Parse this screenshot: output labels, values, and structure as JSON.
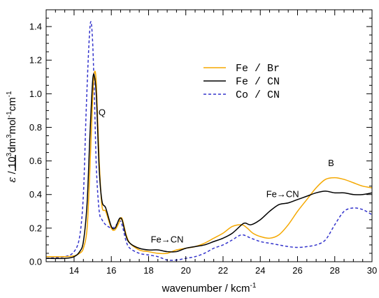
{
  "chart_data": {
    "type": "line",
    "xlabel": "wavenumber / kcm",
    "xlabel_sup": "-1",
    "ylabel": {
      "epsilon": "ε",
      "part1": " / 10",
      "sup1": "3",
      "part2": "dm",
      "sup2": "3",
      "part3": "mol",
      "sup3": "-1",
      "part4": "cm",
      "sup4": "-1"
    },
    "xlim": [
      12.5,
      30
    ],
    "ylim": [
      0,
      1.5
    ],
    "x_ticks": [
      14,
      16,
      18,
      20,
      22,
      24,
      26,
      28,
      30
    ],
    "y_ticks": [
      0.0,
      0.2,
      0.4,
      0.6,
      0.8,
      1.0,
      1.2,
      1.4
    ],
    "legend_position": "top-right",
    "series": [
      {
        "name": "Fe / Br",
        "color": "#f5a800",
        "dash": "solid",
        "x": [
          12.5,
          13.5,
          14.0,
          14.3,
          14.5,
          14.7,
          14.85,
          15.0,
          15.1,
          15.2,
          15.35,
          15.5,
          15.7,
          16.0,
          16.2,
          16.4,
          16.5,
          16.6,
          16.8,
          17.0,
          17.5,
          18.0,
          18.5,
          19.0,
          19.5,
          20.0,
          20.5,
          21.0,
          21.5,
          22.0,
          22.5,
          23.0,
          23.3,
          23.6,
          24.0,
          24.5,
          25.0,
          25.5,
          26.0,
          26.5,
          27.0,
          27.5,
          28.0,
          28.5,
          29.0,
          29.5,
          30.0
        ],
        "y": [
          0.03,
          0.03,
          0.035,
          0.05,
          0.08,
          0.2,
          0.55,
          0.98,
          1.13,
          1.05,
          0.6,
          0.33,
          0.3,
          0.2,
          0.19,
          0.23,
          0.26,
          0.25,
          0.16,
          0.11,
          0.07,
          0.06,
          0.05,
          0.05,
          0.07,
          0.08,
          0.09,
          0.11,
          0.14,
          0.17,
          0.21,
          0.22,
          0.2,
          0.17,
          0.15,
          0.14,
          0.16,
          0.22,
          0.3,
          0.37,
          0.44,
          0.49,
          0.5,
          0.49,
          0.47,
          0.45,
          0.44
        ]
      },
      {
        "name": "Fe / CN",
        "color": "#000000",
        "dash": "solid",
        "x": [
          12.5,
          13.5,
          14.0,
          14.3,
          14.5,
          14.7,
          14.85,
          15.0,
          15.1,
          15.2,
          15.35,
          15.5,
          15.7,
          16.0,
          16.2,
          16.4,
          16.5,
          16.6,
          16.8,
          17.0,
          17.5,
          18.0,
          18.5,
          19.0,
          19.5,
          20.0,
          20.5,
          21.0,
          21.5,
          22.0,
          22.5,
          23.0,
          23.2,
          23.5,
          24.0,
          24.5,
          25.0,
          25.5,
          26.0,
          26.5,
          27.0,
          27.5,
          28.0,
          28.5,
          29.0,
          29.5,
          30.0
        ],
        "y": [
          0.02,
          0.02,
          0.03,
          0.06,
          0.12,
          0.35,
          0.75,
          1.08,
          1.1,
          0.98,
          0.55,
          0.36,
          0.32,
          0.21,
          0.2,
          0.25,
          0.26,
          0.24,
          0.15,
          0.11,
          0.08,
          0.07,
          0.07,
          0.06,
          0.06,
          0.08,
          0.09,
          0.1,
          0.12,
          0.14,
          0.17,
          0.22,
          0.23,
          0.22,
          0.25,
          0.3,
          0.34,
          0.35,
          0.37,
          0.39,
          0.41,
          0.42,
          0.41,
          0.41,
          0.4,
          0.4,
          0.41
        ]
      },
      {
        "name": "Co / CN",
        "color": "#3333cc",
        "dash": "dashed",
        "x": [
          12.5,
          13.5,
          14.0,
          14.3,
          14.5,
          14.65,
          14.8,
          14.9,
          15.0,
          15.1,
          15.2,
          15.35,
          15.5,
          15.7,
          16.0,
          16.2,
          16.4,
          16.5,
          16.6,
          16.8,
          17.0,
          17.5,
          18.0,
          18.5,
          19.0,
          19.5,
          20.0,
          20.5,
          21.0,
          21.5,
          22.0,
          22.5,
          23.0,
          23.5,
          24.0,
          24.5,
          25.0,
          25.5,
          26.0,
          26.5,
          27.0,
          27.5,
          28.0,
          28.5,
          29.0,
          29.5,
          30.0
        ],
        "y": [
          0.02,
          0.03,
          0.06,
          0.15,
          0.4,
          0.9,
          1.3,
          1.43,
          1.3,
          0.95,
          0.55,
          0.3,
          0.25,
          0.22,
          0.2,
          0.21,
          0.24,
          0.24,
          0.21,
          0.12,
          0.08,
          0.05,
          0.04,
          0.03,
          0.01,
          0.01,
          0.02,
          0.03,
          0.05,
          0.08,
          0.1,
          0.13,
          0.16,
          0.14,
          0.12,
          0.11,
          0.1,
          0.09,
          0.085,
          0.09,
          0.1,
          0.13,
          0.22,
          0.3,
          0.32,
          0.31,
          0.28
        ]
      }
    ],
    "annotations": [
      {
        "id": "Q",
        "text": "Q",
        "x": 15.5,
        "y": 0.87
      },
      {
        "id": "fe-cn-1",
        "text": "Fe→CN",
        "x": 19.0,
        "y": 0.115
      },
      {
        "id": "fe-cn-2",
        "text": "Fe→CN",
        "x": 25.2,
        "y": 0.385
      },
      {
        "id": "B",
        "text": "B",
        "x": 27.8,
        "y": 0.57
      }
    ]
  }
}
